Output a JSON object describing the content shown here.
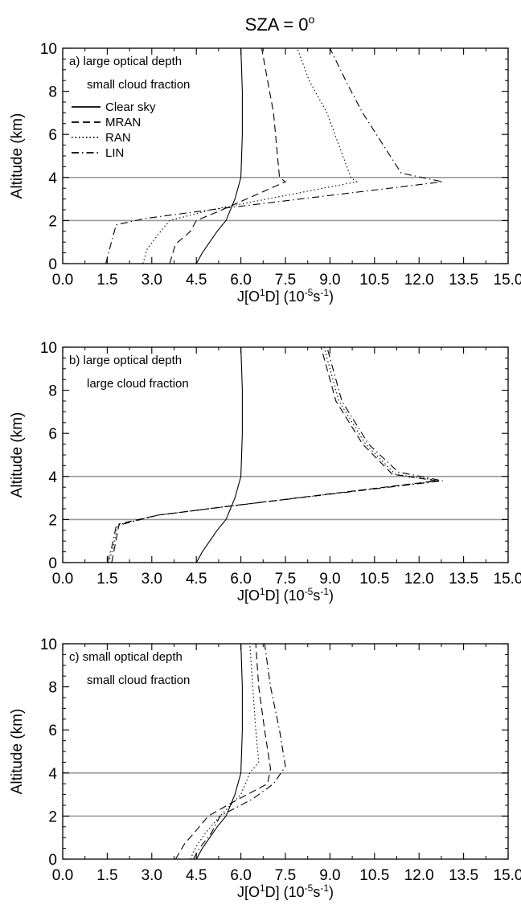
{
  "figure_title": "SZA = 0",
  "figure_title_sup": "o",
  "colors": {
    "axis": "#000000",
    "series": "#000000",
    "reference_lines": "#999999",
    "background": "#ffffff"
  },
  "chart_data": [
    {
      "type": "line",
      "panel_label": "a) large optical depth",
      "panel_label_2": "small cloud fraction",
      "ylabel": "Altitude (km)",
      "xlabel": {
        "base": "J[O",
        "sup1": "1",
        "mid": "D] (10",
        "sup2": "-5",
        "unit": "s",
        "sup3": "-1",
        "end": ")"
      },
      "xlim": [
        0,
        15
      ],
      "ylim": [
        0,
        10
      ],
      "xticks": [
        "0.0",
        "1.5",
        "3.0",
        "4.5",
        "6.0",
        "7.5",
        "9.0",
        "10.5",
        "12.0",
        "13.5",
        "15.0"
      ],
      "yticks": [
        "0",
        "2",
        "4",
        "6",
        "8",
        "10"
      ],
      "reference_lines_y": [
        2,
        4
      ],
      "legend": {
        "position": "top-left",
        "entries": [
          "Clear sky",
          "MRAN",
          "RAN",
          "LIN"
        ]
      },
      "series": [
        {
          "name": "Clear sky",
          "style": "solid",
          "points": [
            [
              4.5,
              0
            ],
            [
              4.7,
              0.5
            ],
            [
              5.2,
              1.5
            ],
            [
              5.5,
              2
            ],
            [
              5.8,
              3
            ],
            [
              6.0,
              4
            ],
            [
              6.05,
              6
            ],
            [
              6.05,
              8
            ],
            [
              6.0,
              10
            ]
          ]
        },
        {
          "name": "MRAN",
          "style": "dashed",
          "points": [
            [
              3.6,
              0
            ],
            [
              3.8,
              0.9
            ],
            [
              4.3,
              1.5
            ],
            [
              4.5,
              2
            ],
            [
              5.2,
              2.4
            ],
            [
              7.5,
              3.8
            ],
            [
              7.3,
              4
            ],
            [
              7.1,
              7
            ],
            [
              6.9,
              8.5
            ],
            [
              6.7,
              10
            ]
          ]
        },
        {
          "name": "RAN",
          "style": "dotted",
          "points": [
            [
              2.7,
              0
            ],
            [
              2.85,
              0.7
            ],
            [
              3.3,
              1.5
            ],
            [
              3.6,
              2
            ],
            [
              5.0,
              2.5
            ],
            [
              9.9,
              3.8
            ],
            [
              9.7,
              4
            ],
            [
              8.9,
              7
            ],
            [
              8.3,
              8.5
            ],
            [
              7.9,
              10
            ]
          ]
        },
        {
          "name": "LIN",
          "style": "dashdot",
          "points": [
            [
              1.45,
              0
            ],
            [
              1.6,
              0.8
            ],
            [
              1.8,
              1.8
            ],
            [
              2.8,
              2.1
            ],
            [
              5.0,
              2.5
            ],
            [
              12.8,
              3.8
            ],
            [
              11.4,
              4.2
            ],
            [
              10.1,
              7
            ],
            [
              9.6,
              8.3
            ],
            [
              9.0,
              10
            ]
          ]
        }
      ]
    },
    {
      "type": "line",
      "panel_label": "b) large optical depth",
      "panel_label_2": "large cloud fraction",
      "ylabel": "Altitude (km)",
      "xlabel": {
        "base": "J[O",
        "sup1": "1",
        "mid": "D] (10",
        "sup2": "-5",
        "unit": "s",
        "sup3": "-1",
        "end": ")"
      },
      "xlim": [
        0,
        15
      ],
      "ylim": [
        0,
        10
      ],
      "xticks": [
        "0.0",
        "1.5",
        "3.0",
        "4.5",
        "6.0",
        "7.5",
        "9.0",
        "10.5",
        "12.0",
        "13.5",
        "15.0"
      ],
      "yticks": [
        "0",
        "2",
        "4",
        "6",
        "8",
        "10"
      ],
      "reference_lines_y": [
        2,
        4
      ],
      "series": [
        {
          "name": "Clear sky",
          "style": "solid",
          "points": [
            [
              4.5,
              0
            ],
            [
              4.7,
              0.5
            ],
            [
              5.2,
              1.5
            ],
            [
              5.5,
              2
            ],
            [
              5.8,
              3
            ],
            [
              6.0,
              4
            ],
            [
              6.05,
              6
            ],
            [
              6.05,
              8
            ],
            [
              6.0,
              10
            ]
          ]
        },
        {
          "name": "MRAN",
          "style": "dashed",
          "points": [
            [
              1.65,
              0
            ],
            [
              1.75,
              0.7
            ],
            [
              1.9,
              1.8
            ],
            [
              3.2,
              2.2
            ],
            [
              5.5,
              2.6
            ],
            [
              12.6,
              3.8
            ],
            [
              11.1,
              4.1
            ],
            [
              10.1,
              5.5
            ],
            [
              9.2,
              7.5
            ],
            [
              8.7,
              10
            ]
          ]
        },
        {
          "name": "RAN",
          "style": "dotted",
          "points": [
            [
              1.55,
              0
            ],
            [
              1.7,
              0.7
            ],
            [
              1.85,
              1.75
            ],
            [
              3.2,
              2.2
            ],
            [
              5.5,
              2.6
            ],
            [
              12.7,
              3.8
            ],
            [
              11.2,
              4.1
            ],
            [
              10.2,
              5.5
            ],
            [
              9.3,
              7.5
            ],
            [
              8.8,
              10
            ]
          ]
        },
        {
          "name": "LIN",
          "style": "dashdot",
          "points": [
            [
              1.5,
              0
            ],
            [
              1.65,
              0.7
            ],
            [
              1.8,
              1.7
            ],
            [
              3.2,
              2.2
            ],
            [
              5.5,
              2.6
            ],
            [
              12.8,
              3.8
            ],
            [
              11.3,
              4.2
            ],
            [
              10.3,
              5.5
            ],
            [
              9.4,
              7.5
            ],
            [
              8.9,
              10
            ]
          ]
        }
      ]
    },
    {
      "type": "line",
      "panel_label": "c) small optical depth",
      "panel_label_2": "small cloud fraction",
      "ylabel": "Altitude (km)",
      "xlabel": {
        "base": "J[O",
        "sup1": "1",
        "mid": "D] (10",
        "sup2": "-5",
        "unit": "s",
        "sup3": "-1",
        "end": ")"
      },
      "xlim": [
        0,
        15
      ],
      "ylim": [
        0,
        10
      ],
      "xticks": [
        "0.0",
        "1.5",
        "3.0",
        "4.5",
        "6.0",
        "7.5",
        "9.0",
        "10.5",
        "12.0",
        "13.5",
        "15.0"
      ],
      "yticks": [
        "0",
        "2",
        "4",
        "6",
        "8",
        "10"
      ],
      "reference_lines_y": [
        2,
        4
      ],
      "series": [
        {
          "name": "Clear sky",
          "style": "solid",
          "points": [
            [
              4.5,
              0
            ],
            [
              4.7,
              0.5
            ],
            [
              5.2,
              1.5
            ],
            [
              5.5,
              2
            ],
            [
              5.8,
              3
            ],
            [
              6.0,
              4
            ],
            [
              6.05,
              6
            ],
            [
              6.05,
              8
            ],
            [
              6.0,
              10
            ]
          ]
        },
        {
          "name": "MRAN",
          "style": "dashed",
          "points": [
            [
              3.8,
              0
            ],
            [
              4.1,
              0.7
            ],
            [
              4.6,
              1.5
            ],
            [
              4.9,
              2
            ],
            [
              5.8,
              2.7
            ],
            [
              6.9,
              3.5
            ],
            [
              7.0,
              4.2
            ],
            [
              6.8,
              6
            ],
            [
              6.6,
              8
            ],
            [
              6.5,
              10
            ]
          ]
        },
        {
          "name": "RAN",
          "style": "dotted",
          "points": [
            [
              4.3,
              0
            ],
            [
              4.5,
              0.6
            ],
            [
              4.8,
              1.2
            ],
            [
              5.3,
              2
            ],
            [
              6.0,
              3
            ],
            [
              6.3,
              4
            ],
            [
              6.6,
              4.5
            ],
            [
              6.5,
              6
            ],
            [
              6.4,
              8
            ],
            [
              6.3,
              10
            ]
          ]
        },
        {
          "name": "LIN",
          "style": "dashdot",
          "points": [
            [
              4.4,
              0
            ],
            [
              4.6,
              0.5
            ],
            [
              5.0,
              1.2
            ],
            [
              5.3,
              2
            ],
            [
              6.4,
              2.8
            ],
            [
              7.1,
              3.5
            ],
            [
              7.5,
              4.3
            ],
            [
              7.3,
              6
            ],
            [
              7.0,
              8
            ],
            [
              6.8,
              10
            ]
          ]
        }
      ]
    }
  ]
}
